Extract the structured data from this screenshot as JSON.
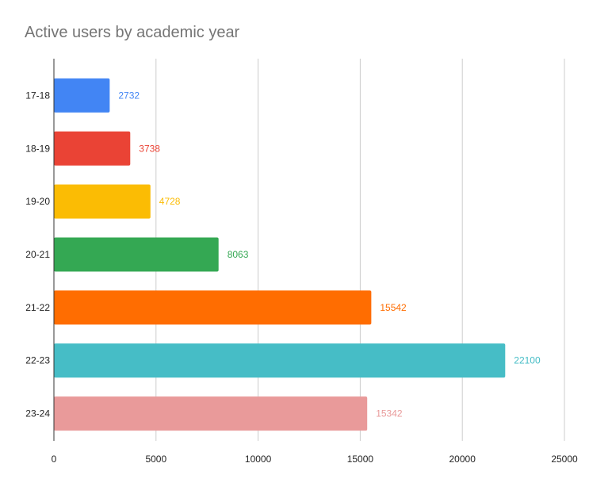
{
  "chart_data": {
    "type": "bar",
    "orientation": "horizontal",
    "title": "Active users by academic year",
    "xlabel": "",
    "ylabel": "",
    "categories": [
      "17-18",
      "18-19",
      "19-20",
      "20-21",
      "21-22",
      "22-23",
      "23-24"
    ],
    "values": [
      2732,
      3738,
      4728,
      8063,
      15542,
      22100,
      15342
    ],
    "colors": [
      "#4285f4",
      "#ea4335",
      "#fbbc04",
      "#34a853",
      "#ff6d01",
      "#46bdc6",
      "#e99a9a"
    ],
    "xlim": [
      0,
      25000
    ],
    "xticks": [
      0,
      5000,
      10000,
      15000,
      20000,
      25000
    ],
    "grid": "vertical",
    "data_labels": true,
    "legend": "none"
  }
}
